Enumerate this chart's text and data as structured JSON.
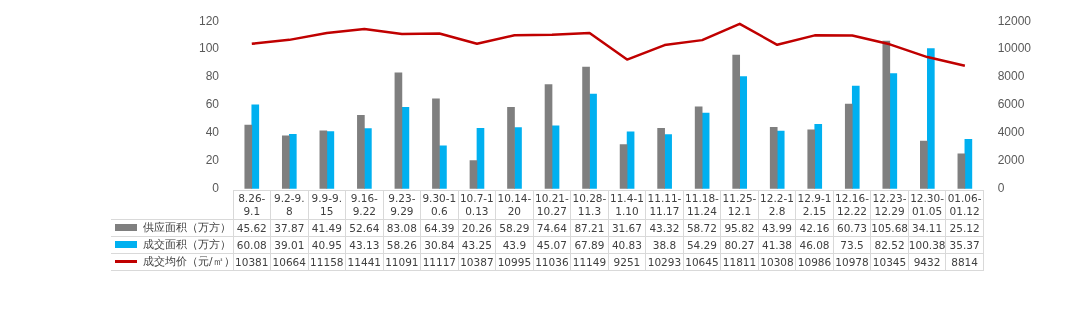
{
  "chart_data": {
    "type": "bar",
    "categories": [
      "8.26-9.1",
      "9.2-9.8",
      "9.9-9.15",
      "9.16-9.22",
      "9.23-9.29",
      "9.30-10.6",
      "10.7-10.13",
      "10.14-20",
      "10.21-10.27",
      "10.28-11.3",
      "11.4-11.10",
      "11.11-11.17",
      "11.18-11.24",
      "11.25-12.1",
      "12.2-12.8",
      "12.9-12.15",
      "12.16-12.22",
      "12.23-12.29",
      "12.30-01.05",
      "01.06-01.12"
    ],
    "series": [
      {
        "name": "供应面积（万方）",
        "color": "#7f7f7f",
        "values": [
          45.62,
          37.87,
          41.49,
          52.64,
          83.08,
          64.39,
          20.26,
          58.29,
          74.64,
          87.21,
          31.67,
          43.32,
          58.72,
          95.82,
          43.99,
          42.16,
          60.73,
          105.68,
          34.11,
          25.12
        ]
      },
      {
        "name": "成交面积（万方）",
        "color": "#00b0f0",
        "values": [
          60.08,
          39.01,
          40.95,
          43.13,
          58.26,
          30.84,
          43.25,
          43.9,
          45.07,
          67.89,
          40.83,
          38.8,
          54.29,
          80.27,
          41.38,
          46.08,
          73.5,
          82.52,
          100.38,
          35.37
        ]
      },
      {
        "name": "成交均价（元/㎡）",
        "type": "line",
        "axis": "y2",
        "color": "#c00000",
        "values": [
          10381,
          10664,
          11158,
          11441,
          11091,
          11117,
          10387,
          10995,
          11036,
          11149,
          9251,
          10293,
          10645,
          11811,
          10308,
          10986,
          10978,
          10345,
          9432,
          8814
        ]
      }
    ],
    "ylim": [
      0,
      120
    ],
    "yticks": [
      0,
      20,
      40,
      60,
      80,
      100,
      120
    ],
    "y2lim": [
      0,
      12000
    ],
    "y2ticks": [
      0,
      2000,
      4000,
      6000,
      8000,
      10000,
      12000
    ],
    "grid": false,
    "legend": "bottom",
    "marker": "none",
    "data_labels": true
  }
}
